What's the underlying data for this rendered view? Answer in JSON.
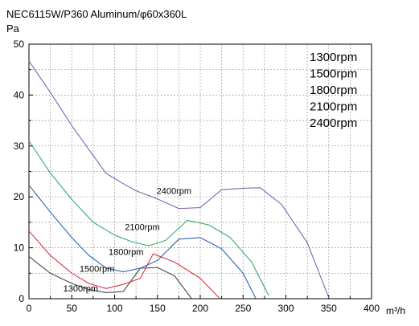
{
  "chart_data": {
    "type": "line",
    "title": "NEC6115W/P360 Aluminum/φ60x360L",
    "ylabel": "Pa",
    "xlabel": "m³/h",
    "xlim": [
      0,
      400
    ],
    "ylim": [
      0,
      50
    ],
    "x_ticks": [
      "0",
      "50",
      "100",
      "150",
      "200",
      "250",
      "300",
      "350",
      "400"
    ],
    "y_ticks": [
      "0",
      "10",
      "20",
      "30",
      "40",
      "50"
    ],
    "grid": true,
    "legend_position": "top-right",
    "legend": [
      "1300rpm",
      "1500rpm",
      "1800rpm",
      "2100rpm",
      "2400rpm"
    ],
    "series": [
      {
        "name": "1300rpm",
        "color": "#4a4a4a",
        "label": "1300rpm",
        "x": [
          0,
          25,
          50,
          70,
          90,
          110,
          130,
          150,
          170,
          190
        ],
        "y": [
          8.3,
          5.0,
          3.0,
          1.8,
          1.2,
          1.4,
          6.0,
          6.1,
          4.5,
          0
        ]
      },
      {
        "name": "1500rpm",
        "color": "#e0353c",
        "label": "1500rpm",
        "x": [
          0,
          25,
          50,
          70,
          90,
          110,
          130,
          145,
          170,
          200,
          223
        ],
        "y": [
          13.3,
          8.5,
          5.0,
          3.0,
          2.0,
          2.8,
          4.0,
          8.8,
          7.2,
          4.0,
          0
        ]
      },
      {
        "name": "1800rpm",
        "color": "#2a66b5",
        "label": "1800rpm",
        "x": [
          0,
          25,
          50,
          70,
          90,
          110,
          130,
          150,
          175,
          200,
          225,
          250,
          265
        ],
        "y": [
          22.3,
          17.0,
          12.0,
          8.5,
          6.0,
          5.3,
          6.0,
          7.5,
          11.7,
          12.0,
          9.8,
          5.0,
          0
        ]
      },
      {
        "name": "2100rpm",
        "color": "#3aa876",
        "label": "2100rpm",
        "x": [
          0,
          25,
          50,
          75,
          100,
          120,
          140,
          160,
          185,
          210,
          235,
          260,
          280
        ],
        "y": [
          31.0,
          24.7,
          19.5,
          15.0,
          12.5,
          11.2,
          10.4,
          11.5,
          15.4,
          14.5,
          12.0,
          7.2,
          0.6
        ]
      },
      {
        "name": "2400rpm",
        "color": "#8064b0",
        "label": "2400rpm",
        "x": [
          0,
          25,
          50,
          70,
          90,
          110,
          125,
          150,
          175,
          200,
          225,
          250,
          270,
          295,
          325,
          350
        ],
        "y": [
          46.7,
          40.5,
          34.0,
          29.3,
          24.6,
          22.6,
          21.2,
          19.6,
          17.7,
          17.9,
          21.4,
          21.7,
          21.8,
          18.5,
          11.0,
          0.2
        ]
      }
    ],
    "annotations": [
      {
        "text": "2400rpm",
        "series": "2400rpm",
        "x": 149,
        "y": 20.6
      },
      {
        "text": "2100rpm",
        "series": "2100rpm",
        "x": 112,
        "y": 13.5
      },
      {
        "text": "1800rpm",
        "series": "1800rpm",
        "x": 93,
        "y": 8.6
      },
      {
        "text": "1500rpm",
        "series": "1500rpm",
        "x": 59,
        "y": 5.3
      },
      {
        "text": "1300rpm",
        "series": "1300rpm",
        "x": 40,
        "y": 1.4
      }
    ]
  }
}
